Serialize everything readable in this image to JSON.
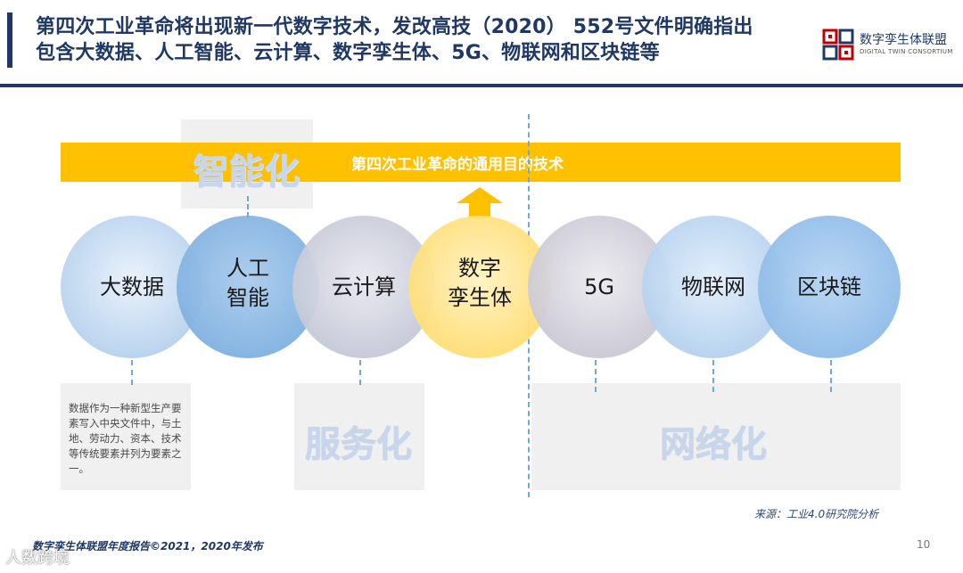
{
  "header": {
    "title_line1": "第四次工业革命将出现新一代数字技术，发改高技（2020） 552号文件明确指出",
    "title_line2": "包含大数据、人工智能、云计算、数字孪生体、5G、物联网和区块链等"
  },
  "logo": {
    "name_cn": "数字孪生体联盟",
    "name_en": "DIGITAL TWIN CONSORTIUM"
  },
  "banner": {
    "label": "第四次工业革命的通用目的技术"
  },
  "categories": {
    "intelligence": "智能化",
    "service": "服务化",
    "network": "网络化"
  },
  "technologies": [
    {
      "line1": "大数据",
      "line2": ""
    },
    {
      "line1": "人工",
      "line2": "智能"
    },
    {
      "line1": "云计算",
      "line2": ""
    },
    {
      "line1": "数字",
      "line2": "孪生体"
    },
    {
      "line1": "5G",
      "line2": ""
    },
    {
      "line1": "物联网",
      "line2": ""
    },
    {
      "line1": "区块链",
      "line2": ""
    }
  ],
  "note": "数据作为一种新型生产要素写入中央文件中，与土地、劳动力、资本、技术等传统要素并列为要素之一。",
  "source": "来源：工业4.0研究院分析",
  "footer": "数字孪生体联盟年度报告©2021，2020年发布",
  "page_number": "10",
  "watermark": "人数跨境",
  "colors": {
    "title": "#1f3864",
    "banner": "#ffc000",
    "circle_blue": "#9dc3e6",
    "circle_gray": "#c7c9d9",
    "circle_yellow": "#ffd966",
    "dashes": "#6fa8dc"
  }
}
